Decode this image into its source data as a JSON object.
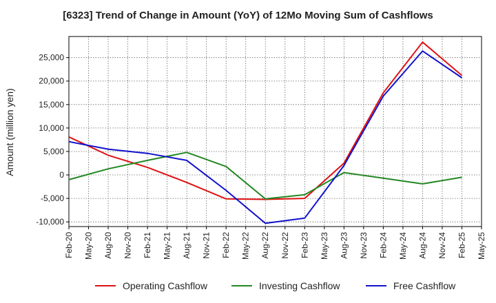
{
  "chart_data": {
    "type": "line",
    "title": "[6323]  Trend of Change in Amount (YoY) of 12Mo Moving Sum of Cashflows",
    "xlabel": "",
    "ylabel": "Amount (million yen)",
    "categories": [
      "Feb-20",
      "May-20",
      "Aug-20",
      "Nov-20",
      "Feb-21",
      "May-21",
      "Aug-21",
      "Nov-21",
      "Feb-22",
      "May-22",
      "Aug-22",
      "Nov-22",
      "Feb-23",
      "May-23",
      "Aug-23",
      "Nov-23",
      "Feb-24",
      "May-24",
      "Aug-24",
      "Nov-24",
      "Feb-25",
      "May-25"
    ],
    "ylim": [
      -11000,
      29500
    ],
    "yticks": [
      -10000,
      -5000,
      0,
      5000,
      10000,
      15000,
      20000,
      25000
    ],
    "ytick_labels": [
      "-10,000",
      "-5,000",
      "0",
      "5,000",
      "10,000",
      "15,000",
      "20,000",
      "25,000"
    ],
    "series": [
      {
        "name": "Operating Cashflow",
        "color": "#dd1111",
        "values": [
          8100,
          null,
          4200,
          null,
          1600,
          null,
          -1600,
          null,
          -5100,
          null,
          -5200,
          null,
          -5000,
          null,
          2500,
          null,
          17500,
          null,
          28300,
          null,
          21200,
          null
        ]
      },
      {
        "name": "Investing Cashflow",
        "color": "#228822",
        "values": [
          -1000,
          null,
          1300,
          null,
          3100,
          null,
          4800,
          null,
          1800,
          null,
          -5100,
          null,
          -4200,
          null,
          500,
          null,
          -700,
          null,
          -1900,
          null,
          -500,
          null
        ]
      },
      {
        "name": "Free Cashflow",
        "color": "#1111cc",
        "values": [
          7100,
          null,
          5500,
          null,
          4600,
          null,
          3100,
          null,
          -3300,
          null,
          -10300,
          null,
          -9200,
          null,
          2000,
          null,
          16800,
          null,
          26400,
          null,
          20700,
          null
        ]
      }
    ],
    "grid": true,
    "legend": "bottom"
  }
}
